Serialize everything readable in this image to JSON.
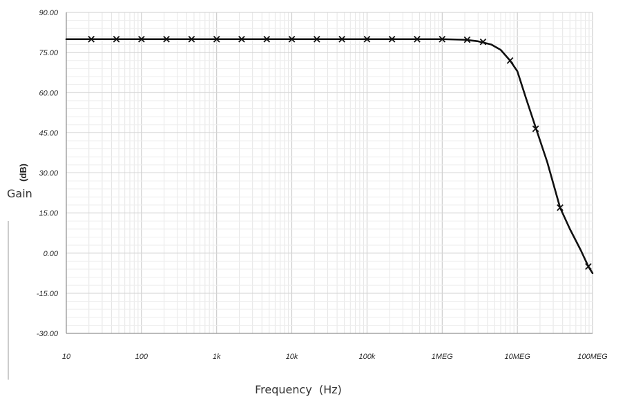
{
  "chart_data": {
    "type": "line",
    "title": "",
    "xlabel": "Frequency  (Hz)",
    "ylabel": "Gain",
    "ylabel_unit": "(dB)",
    "x_scale": "log",
    "xlim": [
      10,
      100000000
    ],
    "ylim": [
      -30,
      90
    ],
    "x_ticks": [
      {
        "value": 10,
        "label": "10"
      },
      {
        "value": 100,
        "label": "100"
      },
      {
        "value": 1000,
        "label": "1k"
      },
      {
        "value": 10000,
        "label": "10k"
      },
      {
        "value": 100000,
        "label": "100k"
      },
      {
        "value": 1000000,
        "label": "1MEG"
      },
      {
        "value": 10000000,
        "label": "10MEG"
      },
      {
        "value": 100000000,
        "label": "100MEG"
      }
    ],
    "y_ticks": [
      {
        "value": 90,
        "label": "90.00"
      },
      {
        "value": 75,
        "label": "75.00"
      },
      {
        "value": 60,
        "label": "60.00"
      },
      {
        "value": 45,
        "label": "45.00"
      },
      {
        "value": 30,
        "label": "30.00"
      },
      {
        "value": 15,
        "label": "15.00"
      },
      {
        "value": 0,
        "label": "0.00"
      },
      {
        "value": -15,
        "label": "-15.00"
      },
      {
        "value": -30,
        "label": "-30.00"
      }
    ],
    "grid": true,
    "series": [
      {
        "line": [
          [
            10,
            80
          ],
          [
            1000000,
            80
          ],
          [
            2000000,
            79.8
          ],
          [
            3000000,
            79.2
          ],
          [
            4500000,
            78
          ],
          [
            6000000,
            76
          ],
          [
            8000000,
            72
          ],
          [
            10000000,
            68
          ],
          [
            13000000,
            58
          ],
          [
            18000000,
            46
          ],
          [
            25000000,
            34
          ],
          [
            37000000,
            17
          ],
          [
            50000000,
            9
          ],
          [
            70000000,
            1
          ],
          [
            88000000,
            -5
          ],
          [
            100000000,
            -7.5
          ]
        ],
        "markers": [
          [
            21.5,
            80
          ],
          [
            46.4,
            80
          ],
          [
            100,
            80
          ],
          [
            215,
            80
          ],
          [
            464,
            80
          ],
          [
            1000,
            80
          ],
          [
            2150,
            80
          ],
          [
            4640,
            80
          ],
          [
            10000,
            80
          ],
          [
            21500,
            80
          ],
          [
            46400,
            80
          ],
          [
            100000,
            80
          ],
          [
            215000,
            80
          ],
          [
            464000,
            80
          ],
          [
            1000000,
            80
          ],
          [
            2150000,
            79.8
          ],
          [
            3500000,
            79
          ],
          [
            8000000,
            72
          ],
          [
            17500000,
            46.5
          ],
          [
            37000000,
            17
          ],
          [
            88000000,
            -5
          ]
        ],
        "color": "#111111",
        "marker": "x"
      }
    ]
  }
}
